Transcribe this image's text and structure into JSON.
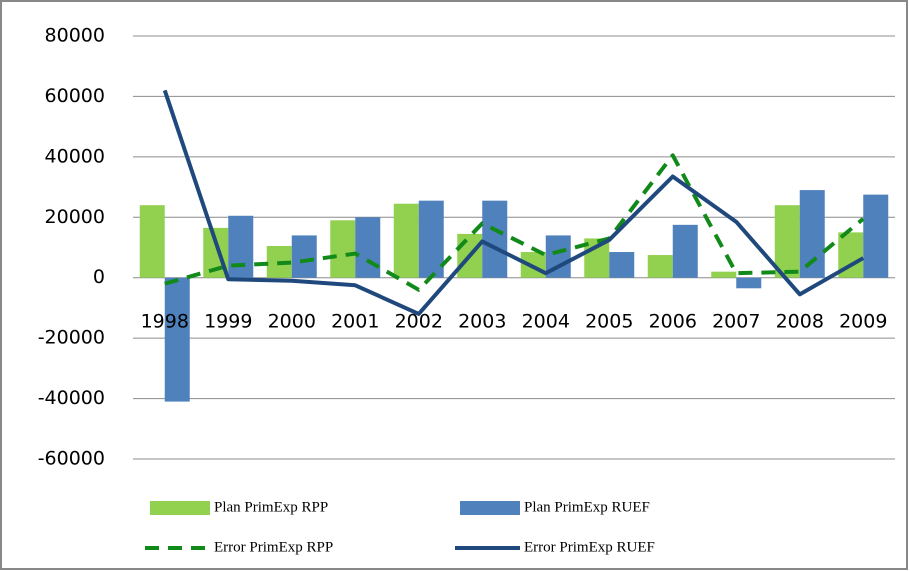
{
  "chart_data": {
    "type": "combo",
    "categories": [
      "1998",
      "1999",
      "2000",
      "2001",
      "2002",
      "2003",
      "2004",
      "2005",
      "2006",
      "2007",
      "2008",
      "2009"
    ],
    "ylim": [
      -60000,
      80000
    ],
    "yticks": [
      -60000,
      -40000,
      -20000,
      0,
      20000,
      40000,
      60000,
      80000
    ],
    "grid": true,
    "legend": "bottom",
    "series": [
      {
        "name": "Plan PrimExp RPP",
        "type": "bar",
        "color": "#92d050",
        "values": [
          24000,
          16500,
          10500,
          19000,
          24500,
          14500,
          8500,
          13000,
          7500,
          2000,
          24000,
          15000
        ]
      },
      {
        "name": "Plan PrimExp RUEF",
        "type": "bar",
        "color": "#4f81bd",
        "values": [
          -41000,
          20500,
          14000,
          20000,
          25500,
          25500,
          14000,
          8500,
          17500,
          -3500,
          29000,
          27500
        ]
      },
      {
        "name": "Error PrimExp RPP",
        "type": "line",
        "line_style": "dashed",
        "color": "#118a1a",
        "values": [
          -2000,
          4000,
          5000,
          8000,
          -4000,
          18000,
          7500,
          13000,
          40500,
          1500,
          2000,
          19500
        ]
      },
      {
        "name": "Error PrimExp RUEF",
        "type": "line",
        "line_style": "solid",
        "color": "#1f497d",
        "values": [
          62000,
          -500,
          -1000,
          -2500,
          -12000,
          12000,
          1500,
          12500,
          33500,
          18500,
          -5500,
          6500
        ]
      }
    ]
  }
}
